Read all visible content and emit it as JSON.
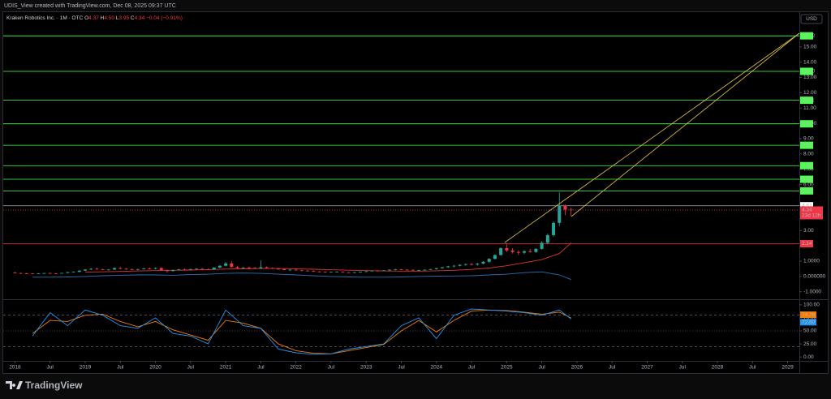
{
  "header": "UDIS_View created with TradingView.com, Dec 08, 2025 09:37 UTC",
  "currency": "USD",
  "brand": "TradingView",
  "chart_data": {
    "type": "candlestick",
    "legend": {
      "symbol": "Kraken Robotics Inc. · 1M · OTC",
      "o": "O",
      "open": "4.37",
      "h": "H",
      "high": "4.50",
      "l": "L",
      "low": "3.95",
      "c": "C",
      "close": "4.34",
      "change": "−0.04 (−0.91%)"
    },
    "up_color": "#26a69a",
    "down_color": "#f23645",
    "xlim": [
      "2017-11",
      "2029-03"
    ],
    "xticks": [
      {
        "value": "2018-01",
        "label": "2018"
      },
      {
        "value": "2018-07",
        "label": "Jul"
      },
      {
        "value": "2019-01",
        "label": "2019"
      },
      {
        "value": "2019-07",
        "label": "Jul"
      },
      {
        "value": "2020-01",
        "label": "2020"
      },
      {
        "value": "2020-07",
        "label": "Jul"
      },
      {
        "value": "2021-01",
        "label": "2021"
      },
      {
        "value": "2021-07",
        "label": "Jul"
      },
      {
        "value": "2022-01",
        "label": "2022"
      },
      {
        "value": "2022-07",
        "label": "Jul"
      },
      {
        "value": "2023-01",
        "label": "2023"
      },
      {
        "value": "2023-07",
        "label": "Jul"
      },
      {
        "value": "2024-01",
        "label": "2024"
      },
      {
        "value": "2024-07",
        "label": "Jul"
      },
      {
        "value": "2025-01",
        "label": "2025"
      },
      {
        "value": "2025-07",
        "label": "Jul"
      },
      {
        "value": "2026-01",
        "label": "2026"
      },
      {
        "value": "2026-07",
        "label": "Jul"
      },
      {
        "value": "2027-01",
        "label": "2027"
      },
      {
        "value": "2027-07",
        "label": "Jul"
      },
      {
        "value": "2028-01",
        "label": "2028"
      },
      {
        "value": "2028-07",
        "label": "Jul"
      },
      {
        "value": "2029-01",
        "label": "2029"
      }
    ],
    "ylim": [
      -1.33,
      16.1
    ],
    "yticks": [
      {
        "value": 15,
        "label": "15.00"
      },
      {
        "value": 14,
        "label": "14.00"
      },
      {
        "value": 13,
        "label": "13.00"
      },
      {
        "value": 12,
        "label": "12.00"
      },
      {
        "value": 11,
        "label": "11.00"
      },
      {
        "value": 10,
        "label": "10.00"
      },
      {
        "value": 9,
        "label": "9.00"
      },
      {
        "value": 8,
        "label": "8.00"
      },
      {
        "value": 7,
        "label": "7.00"
      },
      {
        "value": 6,
        "label": "6.00"
      },
      {
        "value": 3,
        "label": "3.00"
      },
      {
        "value": 1,
        "label": "1.0000"
      },
      {
        "value": 0,
        "label": "0.000000"
      },
      {
        "value": -1,
        "label": "-1.0000"
      }
    ],
    "x": [
      "2018-01",
      "2018-02",
      "2018-03",
      "2018-04",
      "2018-05",
      "2018-06",
      "2018-07",
      "2018-08",
      "2018-09",
      "2018-10",
      "2018-11",
      "2018-12",
      "2019-01",
      "2019-02",
      "2019-03",
      "2019-04",
      "2019-05",
      "2019-06",
      "2019-07",
      "2019-08",
      "2019-09",
      "2019-10",
      "2019-11",
      "2019-12",
      "2020-01",
      "2020-02",
      "2020-03",
      "2020-04",
      "2020-05",
      "2020-06",
      "2020-07",
      "2020-08",
      "2020-09",
      "2020-10",
      "2020-11",
      "2020-12",
      "2021-01",
      "2021-02",
      "2021-03",
      "2021-04",
      "2021-05",
      "2021-06",
      "2021-07",
      "2021-08",
      "2021-09",
      "2021-10",
      "2021-11",
      "2021-12",
      "2022-01",
      "2022-02",
      "2022-03",
      "2022-04",
      "2022-05",
      "2022-06",
      "2022-07",
      "2022-08",
      "2022-09",
      "2022-10",
      "2022-11",
      "2022-12",
      "2023-01",
      "2023-02",
      "2023-03",
      "2023-04",
      "2023-05",
      "2023-06",
      "2023-07",
      "2023-08",
      "2023-09",
      "2023-10",
      "2023-11",
      "2023-12",
      "2024-01",
      "2024-02",
      "2024-03",
      "2024-04",
      "2024-05",
      "2024-06",
      "2024-07",
      "2024-08",
      "2024-09",
      "2024-10",
      "2024-11",
      "2024-12",
      "2025-01",
      "2025-02",
      "2025-03",
      "2025-04",
      "2025-05",
      "2025-06",
      "2025-07",
      "2025-08",
      "2025-09",
      "2025-10",
      "2025-11",
      "2025-12"
    ],
    "candles": [
      [
        0.25,
        0.3,
        0.2,
        0.22
      ],
      [
        0.22,
        0.26,
        0.18,
        0.2
      ],
      [
        0.2,
        0.24,
        0.17,
        0.19
      ],
      [
        0.19,
        0.22,
        0.16,
        0.18
      ],
      [
        0.18,
        0.22,
        0.16,
        0.2
      ],
      [
        0.2,
        0.24,
        0.18,
        0.22
      ],
      [
        0.22,
        0.26,
        0.19,
        0.2
      ],
      [
        0.2,
        0.23,
        0.17,
        0.19
      ],
      [
        0.19,
        0.24,
        0.18,
        0.23
      ],
      [
        0.23,
        0.3,
        0.21,
        0.28
      ],
      [
        0.28,
        0.34,
        0.25,
        0.3
      ],
      [
        0.3,
        0.4,
        0.27,
        0.38
      ],
      [
        0.38,
        0.48,
        0.35,
        0.45
      ],
      [
        0.45,
        0.55,
        0.42,
        0.5
      ],
      [
        0.5,
        0.58,
        0.44,
        0.46
      ],
      [
        0.46,
        0.5,
        0.4,
        0.42
      ],
      [
        0.42,
        0.48,
        0.38,
        0.45
      ],
      [
        0.45,
        0.6,
        0.43,
        0.55
      ],
      [
        0.55,
        0.62,
        0.48,
        0.5
      ],
      [
        0.5,
        0.55,
        0.44,
        0.47
      ],
      [
        0.47,
        0.52,
        0.42,
        0.44
      ],
      [
        0.44,
        0.5,
        0.4,
        0.48
      ],
      [
        0.48,
        0.56,
        0.45,
        0.52
      ],
      [
        0.52,
        0.58,
        0.46,
        0.5
      ],
      [
        0.5,
        0.6,
        0.46,
        0.55
      ],
      [
        0.55,
        0.6,
        0.4,
        0.42
      ],
      [
        0.42,
        0.45,
        0.25,
        0.35
      ],
      [
        0.35,
        0.45,
        0.33,
        0.42
      ],
      [
        0.42,
        0.5,
        0.4,
        0.46
      ],
      [
        0.46,
        0.52,
        0.42,
        0.44
      ],
      [
        0.44,
        0.5,
        0.4,
        0.48
      ],
      [
        0.48,
        0.55,
        0.44,
        0.5
      ],
      [
        0.5,
        0.55,
        0.44,
        0.47
      ],
      [
        0.47,
        0.52,
        0.43,
        0.45
      ],
      [
        0.45,
        0.6,
        0.44,
        0.58
      ],
      [
        0.58,
        0.75,
        0.55,
        0.7
      ],
      [
        0.7,
        0.95,
        0.65,
        0.85
      ],
      [
        0.85,
        1.0,
        0.6,
        0.62
      ],
      [
        0.62,
        0.7,
        0.5,
        0.55
      ],
      [
        0.55,
        0.62,
        0.5,
        0.58
      ],
      [
        0.58,
        0.65,
        0.52,
        0.56
      ],
      [
        0.56,
        0.62,
        0.5,
        0.52
      ],
      [
        0.52,
        1.05,
        0.5,
        0.6
      ],
      [
        0.6,
        0.66,
        0.52,
        0.55
      ],
      [
        0.55,
        0.6,
        0.48,
        0.5
      ],
      [
        0.5,
        0.56,
        0.45,
        0.48
      ],
      [
        0.48,
        0.52,
        0.4,
        0.42
      ],
      [
        0.42,
        0.48,
        0.38,
        0.44
      ],
      [
        0.44,
        0.48,
        0.38,
        0.4
      ],
      [
        0.4,
        0.44,
        0.34,
        0.38
      ],
      [
        0.38,
        0.42,
        0.33,
        0.36
      ],
      [
        0.36,
        0.4,
        0.3,
        0.32
      ],
      [
        0.32,
        0.35,
        0.27,
        0.3
      ],
      [
        0.3,
        0.33,
        0.25,
        0.28
      ],
      [
        0.28,
        0.32,
        0.25,
        0.3
      ],
      [
        0.3,
        0.34,
        0.27,
        0.31
      ],
      [
        0.31,
        0.33,
        0.25,
        0.27
      ],
      [
        0.27,
        0.3,
        0.23,
        0.26
      ],
      [
        0.26,
        0.3,
        0.22,
        0.28
      ],
      [
        0.28,
        0.32,
        0.24,
        0.3
      ],
      [
        0.3,
        0.36,
        0.28,
        0.34
      ],
      [
        0.34,
        0.4,
        0.32,
        0.38
      ],
      [
        0.38,
        0.42,
        0.33,
        0.36
      ],
      [
        0.36,
        0.42,
        0.34,
        0.4
      ],
      [
        0.4,
        0.46,
        0.37,
        0.44
      ],
      [
        0.44,
        0.5,
        0.4,
        0.46
      ],
      [
        0.46,
        0.5,
        0.42,
        0.44
      ],
      [
        0.44,
        0.48,
        0.4,
        0.43
      ],
      [
        0.43,
        0.46,
        0.38,
        0.4
      ],
      [
        0.4,
        0.44,
        0.36,
        0.42
      ],
      [
        0.42,
        0.46,
        0.39,
        0.44
      ],
      [
        0.44,
        0.5,
        0.42,
        0.48
      ],
      [
        0.48,
        0.56,
        0.45,
        0.54
      ],
      [
        0.54,
        0.62,
        0.5,
        0.6
      ],
      [
        0.6,
        0.7,
        0.56,
        0.66
      ],
      [
        0.66,
        0.75,
        0.6,
        0.7
      ],
      [
        0.7,
        0.8,
        0.65,
        0.76
      ],
      [
        0.76,
        0.86,
        0.7,
        0.8
      ],
      [
        0.8,
        0.9,
        0.72,
        0.78
      ],
      [
        0.78,
        0.88,
        0.7,
        0.84
      ],
      [
        0.84,
        1.0,
        0.8,
        0.96
      ],
      [
        0.96,
        1.2,
        0.9,
        1.15
      ],
      [
        1.15,
        1.45,
        1.1,
        1.4
      ],
      [
        1.4,
        1.9,
        1.35,
        1.85
      ],
      [
        1.85,
        2.14,
        1.6,
        1.7
      ],
      [
        1.7,
        1.85,
        1.5,
        1.6
      ],
      [
        1.6,
        1.7,
        1.4,
        1.55
      ],
      [
        1.55,
        1.7,
        1.45,
        1.65
      ],
      [
        1.65,
        1.8,
        1.55,
        1.6
      ],
      [
        1.6,
        1.85,
        1.55,
        1.8
      ],
      [
        1.8,
        2.3,
        1.75,
        2.2
      ],
      [
        2.2,
        2.8,
        2.1,
        2.7
      ],
      [
        2.7,
        3.6,
        2.6,
        3.5
      ],
      [
        3.5,
        5.5,
        3.3,
        4.62
      ],
      [
        4.62,
        4.7,
        4.0,
        4.37
      ],
      [
        4.37,
        4.5,
        3.95,
        4.34
      ]
    ],
    "levels": [
      {
        "value": 15.72,
        "label": "15.72",
        "color": "#4cff4c"
      },
      {
        "value": 13.4,
        "label": "13.40",
        "color": "#4cff4c"
      },
      {
        "value": 11.51,
        "label": "11.51",
        "color": "#4cff4c"
      },
      {
        "value": 9.97,
        "label": "9.97",
        "color": "#4cff4c"
      },
      {
        "value": 8.57,
        "label": "8.57",
        "color": "#4cff4c"
      },
      {
        "value": 7.24,
        "label": "7.24",
        "color": "#4cff4c"
      },
      {
        "value": 6.35,
        "label": "6.35",
        "color": "#4cff4c"
      },
      {
        "value": 5.59,
        "label": "5.59",
        "color": "#4cff4c"
      },
      {
        "value": 4.62,
        "label": "4.62",
        "color": "#ffffff"
      },
      {
        "value": 2.14,
        "label": "2.14",
        "color": "#f23645"
      }
    ],
    "last": {
      "value": 4.34,
      "label": "4.34",
      "countdown": "23d 12h",
      "color": "#f23645"
    },
    "line_x": [
      "2018-04",
      "2018-07",
      "2018-10",
      "2019-01",
      "2019-04",
      "2019-07",
      "2019-10",
      "2020-01",
      "2020-04",
      "2020-07",
      "2020-10",
      "2021-01",
      "2021-04",
      "2021-07",
      "2021-10",
      "2022-01",
      "2022-04",
      "2022-07",
      "2022-10",
      "2023-01",
      "2023-04",
      "2023-07",
      "2023-10",
      "2024-01",
      "2024-04",
      "2024-07",
      "2024-10",
      "2025-01",
      "2025-04",
      "2025-07",
      "2025-10",
      "2025-12"
    ],
    "overlays": [
      {
        "color": "#e0352b",
        "values": [
          null,
          null,
          null,
          0.28,
          0.3,
          0.33,
          0.36,
          0.38,
          0.4,
          0.42,
          0.45,
          0.48,
          0.5,
          0.52,
          0.52,
          0.5,
          0.47,
          0.44,
          0.41,
          0.38,
          0.36,
          0.35,
          0.35,
          0.37,
          0.4,
          0.46,
          0.55,
          0.7,
          0.9,
          1.1,
          1.5,
          2.2
        ]
      },
      {
        "color": "#2a6fb0",
        "values": [
          -0.05,
          -0.05,
          -0.03,
          0,
          0.05,
          0.08,
          0.1,
          0.1,
          0.08,
          0.12,
          0.15,
          0.2,
          0.22,
          0.2,
          0.15,
          0.1,
          0.05,
          0,
          -0.03,
          -0.05,
          -0.05,
          -0.03,
          0,
          0.02,
          0.03,
          0.05,
          0.1,
          0.15,
          0.25,
          0.3,
          0.1,
          -0.2
        ]
      }
    ],
    "rsi": {
      "ylim": [
        -6,
        106
      ],
      "yticks": [
        {
          "value": 100,
          "label": "100.00"
        },
        {
          "value": 75,
          "label": "75.00"
        },
        {
          "value": 50,
          "label": "50.00"
        },
        {
          "value": 25,
          "label": "25.00"
        },
        {
          "value": 0,
          "label": "0.00"
        }
      ],
      "levels": [
        80,
        50,
        20
      ],
      "series": [
        {
          "color": "#f57c00",
          "values": [
            45,
            70,
            68,
            80,
            82,
            68,
            58,
            68,
            52,
            42,
            32,
            70,
            65,
            55,
            25,
            12,
            7,
            6,
            12,
            18,
            24,
            50,
            70,
            48,
            70,
            88,
            90,
            89,
            86,
            82,
            86,
            74.76
          ],
          "last_label": "74.76"
        },
        {
          "color": "#2196f3",
          "values": [
            40,
            85,
            60,
            90,
            80,
            60,
            55,
            75,
            45,
            40,
            25,
            90,
            60,
            55,
            15,
            8,
            5,
            6,
            15,
            20,
            25,
            60,
            75,
            35,
            80,
            92,
            90,
            88,
            85,
            80,
            90,
            72.8
          ],
          "last_label": "72.80"
        }
      ]
    }
  }
}
